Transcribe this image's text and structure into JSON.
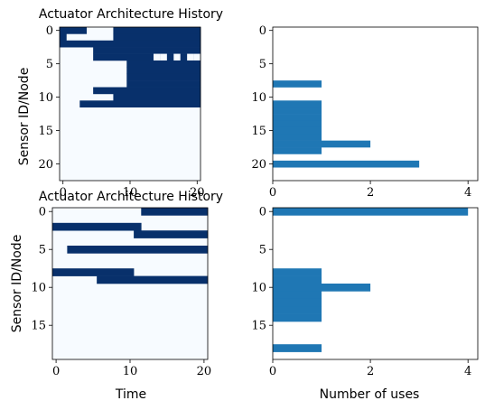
{
  "colors": {
    "dark": "#08306b",
    "light": "#f7fbff",
    "bar": "#1f77b4",
    "axis": "#000000"
  },
  "chart_data": [
    {
      "id": "hm1",
      "type": "heatmap",
      "title": "Actuator Architecture History",
      "xlabel": "",
      "ylabel": "Sensor ID/Node",
      "xticks": [
        0,
        10,
        20
      ],
      "yticks": [
        0,
        5,
        10,
        15,
        20
      ],
      "xlim": [
        -0.5,
        20.5
      ],
      "ylim": [
        22.5,
        -0.5
      ],
      "rows": 23,
      "cols": 21,
      "dark_segments": [
        [
          0,
          0,
          3
        ],
        [
          0,
          8,
          20
        ],
        [
          1,
          0,
          0
        ],
        [
          1,
          8,
          20
        ],
        [
          2,
          0,
          20
        ],
        [
          3,
          5,
          20
        ],
        [
          4,
          5,
          20
        ],
        [
          5,
          10,
          20
        ],
        [
          6,
          10,
          20
        ],
        [
          7,
          10,
          20
        ],
        [
          8,
          10,
          20
        ],
        [
          9,
          5,
          20
        ],
        [
          10,
          8,
          20
        ],
        [
          11,
          3,
          20
        ]
      ],
      "white_marks": [
        [
          4,
          14
        ],
        [
          4,
          15
        ],
        [
          4,
          17
        ],
        [
          4,
          19
        ],
        [
          4,
          20
        ]
      ]
    },
    {
      "id": "bar1",
      "type": "bar",
      "orientation": "horizontal",
      "xlabel": "",
      "ylabel": "",
      "xticks": [
        0,
        2,
        4
      ],
      "yticks": [
        0,
        5,
        10,
        15,
        20
      ],
      "xlim": [
        0,
        4.2
      ],
      "ylim": [
        22.5,
        -0.5
      ],
      "categories": [
        8,
        11,
        12,
        13,
        14,
        15,
        16,
        17,
        18,
        20
      ],
      "values": [
        1,
        1,
        1,
        1,
        1,
        1,
        1,
        2,
        1,
        3
      ]
    },
    {
      "id": "hm2",
      "type": "heatmap",
      "title": "Actuator Architecture History",
      "xlabel": "Time",
      "ylabel": "Sensor ID/Node",
      "xticks": [
        0,
        10,
        20
      ],
      "yticks": [
        0,
        5,
        10,
        15
      ],
      "xlim": [
        -0.5,
        20.5
      ],
      "ylim": [
        19.5,
        -0.5
      ],
      "rows": 20,
      "cols": 21,
      "dark_segments": [
        [
          0,
          12,
          20
        ],
        [
          2,
          0,
          11
        ],
        [
          3,
          11,
          20
        ],
        [
          5,
          2,
          20
        ],
        [
          8,
          0,
          10
        ],
        [
          9,
          6,
          20
        ]
      ],
      "white_marks": []
    },
    {
      "id": "bar2",
      "type": "bar",
      "orientation": "horizontal",
      "xlabel": "Number of uses",
      "ylabel": "",
      "xticks": [
        0,
        2,
        4
      ],
      "yticks": [
        0,
        5,
        10,
        15
      ],
      "xlim": [
        0,
        4.2
      ],
      "ylim": [
        19.5,
        -0.5
      ],
      "categories": [
        0,
        8,
        9,
        10,
        11,
        12,
        13,
        14,
        18
      ],
      "values": [
        4,
        1,
        1,
        2,
        1,
        1,
        1,
        1,
        1
      ]
    }
  ]
}
